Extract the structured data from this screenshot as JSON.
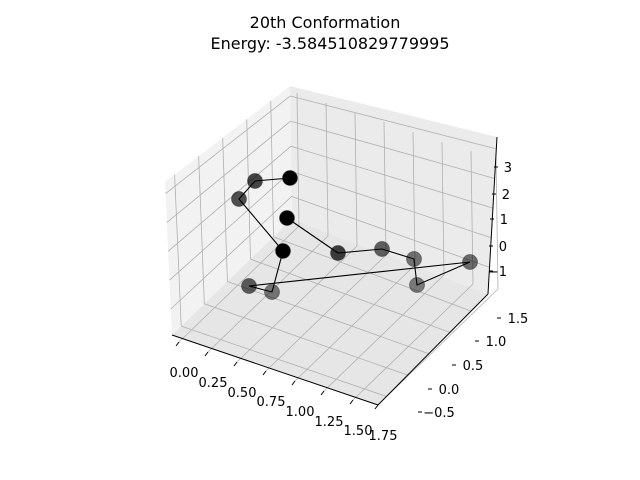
{
  "chart_data": {
    "type": "scatter3d",
    "title": "20th Conformation",
    "subtitle": "Energy: -3.584510829779995",
    "xlabel": "",
    "ylabel": "",
    "zlabel": "",
    "x_ticks": [
      "0.00",
      "0.25",
      "0.50",
      "0.75",
      "1.00",
      "1.25",
      "1.50",
      "1.75"
    ],
    "y_ticks": [
      "−0.5",
      "0.0",
      "0.5",
      "1.0",
      "1.5"
    ],
    "z_ticks": [
      "−1",
      "0",
      "1",
      "2",
      "3"
    ],
    "grid": true,
    "marker_color": "#000000",
    "line_color": "#000000",
    "points": [
      {
        "x": 0.0,
        "y": 0.0,
        "z": 3.0
      },
      {
        "x": 0.0,
        "y": -0.3,
        "z": 2.1
      },
      {
        "x": 0.5,
        "y": 0.2,
        "z": 0.4
      },
      {
        "x": 0.0,
        "y": 0.0,
        "z": 0.0
      },
      {
        "x": 0.5,
        "y": 1.0,
        "z": 2.0
      },
      {
        "x": 0.9,
        "y": 1.3,
        "z": -0.2
      },
      {
        "x": 1.2,
        "y": 1.4,
        "z": -0.3
      },
      {
        "x": 1.6,
        "y": 1.5,
        "z": -0.8
      },
      {
        "x": 1.75,
        "y": 0.5,
        "z": -0.7
      },
      {
        "x": 0.8,
        "y": 0.3,
        "z": -0.6
      },
      {
        "x": 0.2,
        "y": 0.3,
        "z": -0.7
      },
      {
        "x": 0.0,
        "y": 0.0,
        "z": -1.0
      }
    ]
  }
}
